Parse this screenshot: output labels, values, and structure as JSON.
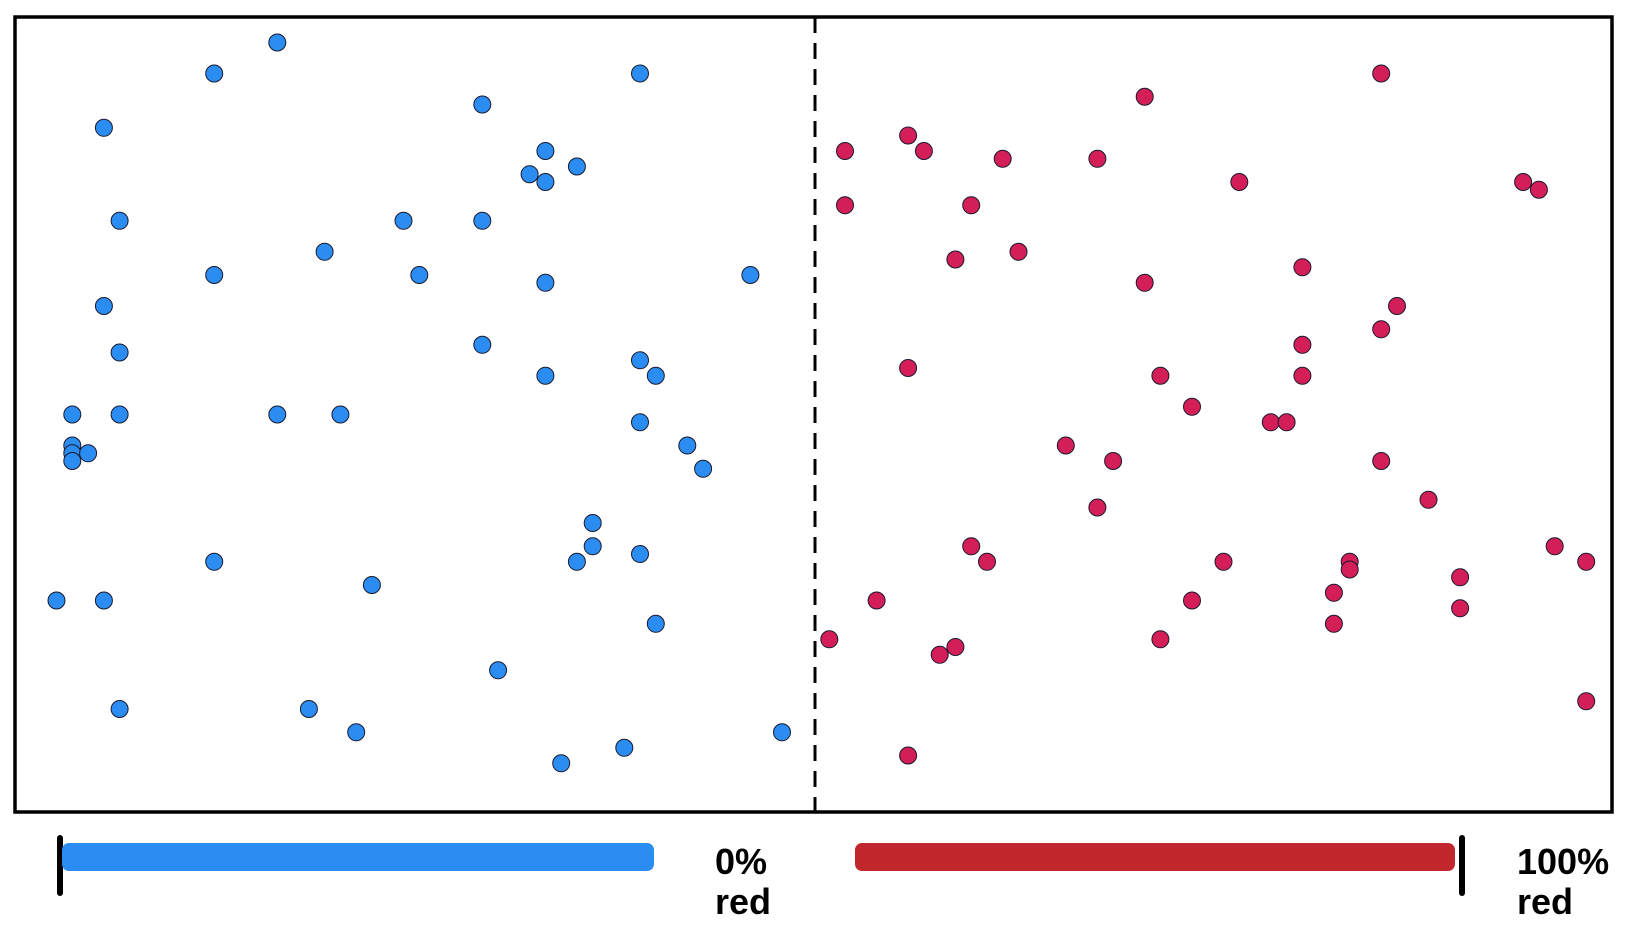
{
  "legend": {
    "left_caption_line1": "0%",
    "left_caption_line2": "red",
    "right_caption_line1": "100%",
    "right_caption_line2": "red",
    "left_bar_fraction": 0.41,
    "right_bar_fraction": 0.42
  },
  "colors": {
    "blue_dot": "#2b8cf2",
    "red_dot": "#d41e58",
    "blue_bar": "#2b8cf2",
    "red_bar": "#c1272d",
    "frame": "#000000"
  },
  "blue_points": [
    [
      0.16,
      0.98
    ],
    [
      0.12,
      0.94
    ],
    [
      0.39,
      0.94
    ],
    [
      0.29,
      0.9
    ],
    [
      0.05,
      0.87
    ],
    [
      0.33,
      0.84
    ],
    [
      0.32,
      0.81
    ],
    [
      0.35,
      0.82
    ],
    [
      0.33,
      0.8
    ],
    [
      0.06,
      0.75
    ],
    [
      0.24,
      0.75
    ],
    [
      0.29,
      0.75
    ],
    [
      0.19,
      0.71
    ],
    [
      0.12,
      0.68
    ],
    [
      0.25,
      0.68
    ],
    [
      0.33,
      0.67
    ],
    [
      0.46,
      0.68
    ],
    [
      0.05,
      0.64
    ],
    [
      0.06,
      0.58
    ],
    [
      0.29,
      0.59
    ],
    [
      0.33,
      0.55
    ],
    [
      0.39,
      0.57
    ],
    [
      0.4,
      0.55
    ],
    [
      0.03,
      0.5
    ],
    [
      0.06,
      0.5
    ],
    [
      0.16,
      0.5
    ],
    [
      0.2,
      0.5
    ],
    [
      0.39,
      0.49
    ],
    [
      0.03,
      0.46
    ],
    [
      0.03,
      0.45
    ],
    [
      0.03,
      0.44
    ],
    [
      0.04,
      0.45
    ],
    [
      0.42,
      0.46
    ],
    [
      0.43,
      0.43
    ],
    [
      0.36,
      0.36
    ],
    [
      0.36,
      0.33
    ],
    [
      0.12,
      0.31
    ],
    [
      0.35,
      0.31
    ],
    [
      0.39,
      0.32
    ],
    [
      0.22,
      0.28
    ],
    [
      0.02,
      0.26
    ],
    [
      0.05,
      0.26
    ],
    [
      0.4,
      0.23
    ],
    [
      0.3,
      0.17
    ],
    [
      0.06,
      0.12
    ],
    [
      0.18,
      0.12
    ],
    [
      0.21,
      0.09
    ],
    [
      0.38,
      0.07
    ],
    [
      0.48,
      0.09
    ],
    [
      0.34,
      0.05
    ]
  ],
  "red_points": [
    [
      0.86,
      0.94
    ],
    [
      0.71,
      0.91
    ],
    [
      0.52,
      0.84
    ],
    [
      0.56,
      0.86
    ],
    [
      0.57,
      0.84
    ],
    [
      0.62,
      0.83
    ],
    [
      0.68,
      0.83
    ],
    [
      0.77,
      0.8
    ],
    [
      0.95,
      0.8
    ],
    [
      0.96,
      0.79
    ],
    [
      0.52,
      0.77
    ],
    [
      0.6,
      0.77
    ],
    [
      0.59,
      0.7
    ],
    [
      0.63,
      0.71
    ],
    [
      0.81,
      0.69
    ],
    [
      0.71,
      0.67
    ],
    [
      0.87,
      0.64
    ],
    [
      0.86,
      0.61
    ],
    [
      0.81,
      0.59
    ],
    [
      0.56,
      0.56
    ],
    [
      0.72,
      0.55
    ],
    [
      0.81,
      0.55
    ],
    [
      0.74,
      0.51
    ],
    [
      0.79,
      0.49
    ],
    [
      0.8,
      0.49
    ],
    [
      0.66,
      0.46
    ],
    [
      0.69,
      0.44
    ],
    [
      0.86,
      0.44
    ],
    [
      0.68,
      0.38
    ],
    [
      0.89,
      0.39
    ],
    [
      0.6,
      0.33
    ],
    [
      0.61,
      0.31
    ],
    [
      0.76,
      0.31
    ],
    [
      0.84,
      0.31
    ],
    [
      0.84,
      0.3
    ],
    [
      0.97,
      0.33
    ],
    [
      0.99,
      0.31
    ],
    [
      0.74,
      0.26
    ],
    [
      0.91,
      0.29
    ],
    [
      0.54,
      0.26
    ],
    [
      0.83,
      0.27
    ],
    [
      0.91,
      0.25
    ],
    [
      0.83,
      0.23
    ],
    [
      0.72,
      0.21
    ],
    [
      0.59,
      0.2
    ],
    [
      0.51,
      0.21
    ],
    [
      0.58,
      0.19
    ],
    [
      0.56,
      0.06
    ],
    [
      0.99,
      0.13
    ]
  ]
}
